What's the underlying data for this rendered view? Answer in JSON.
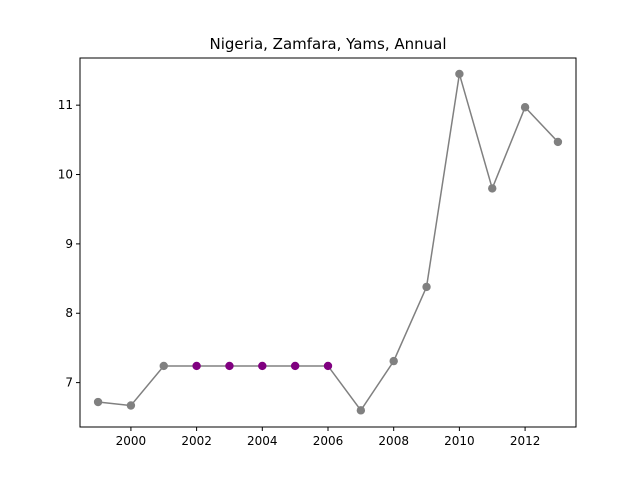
{
  "chart_data": {
    "type": "line",
    "title": "Nigeria, Zamfara, Yams, Annual",
    "xlabel": "",
    "ylabel": "",
    "xlim": [
      1998.45,
      2013.55
    ],
    "ylim": [
      6.36,
      11.68
    ],
    "x_ticks": [
      2000,
      2002,
      2004,
      2006,
      2008,
      2010,
      2012
    ],
    "y_ticks": [
      7,
      8,
      9,
      10,
      11
    ],
    "grid": false,
    "legend": "none",
    "line_color": "#808080",
    "series": [
      {
        "x": [
          1999,
          2000,
          2001,
          2002,
          2003,
          2004,
          2005,
          2006,
          2007,
          2008,
          2009,
          2010,
          2011,
          2012,
          2013
        ],
        "y": [
          6.72,
          6.67,
          7.24,
          7.24,
          7.24,
          7.24,
          7.24,
          7.24,
          6.6,
          7.31,
          8.38,
          11.45,
          9.8,
          10.97,
          10.47
        ],
        "colors": [
          "#808080",
          "#808080",
          "#808080",
          "#800080",
          "#800080",
          "#800080",
          "#800080",
          "#800080",
          "#808080",
          "#808080",
          "#808080",
          "#808080",
          "#808080",
          "#808080",
          "#808080"
        ]
      }
    ]
  }
}
